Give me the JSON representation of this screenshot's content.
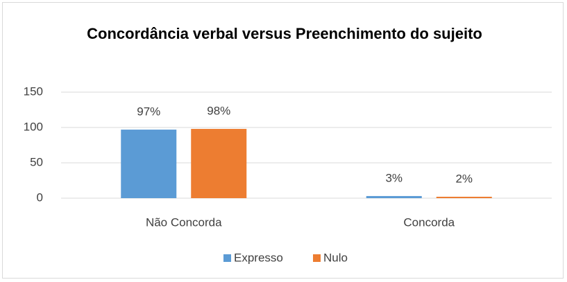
{
  "chart_data": {
    "type": "bar",
    "title": "Concordância verbal versus Preenchimento do sujeito",
    "categories": [
      "Não Concorda",
      "Concorda"
    ],
    "series": [
      {
        "name": "Expresso",
        "color": "#5b9bd5",
        "values": [
          97,
          3
        ],
        "value_labels": [
          "97%",
          "3%"
        ]
      },
      {
        "name": "Nulo",
        "color": "#ed7d31",
        "values": [
          98,
          2
        ],
        "value_labels": [
          "98%",
          "2%"
        ]
      }
    ],
    "ylim": [
      0,
      150
    ],
    "yticks": [
      0,
      50,
      100,
      150
    ],
    "grid": true,
    "legend": "bottom"
  }
}
